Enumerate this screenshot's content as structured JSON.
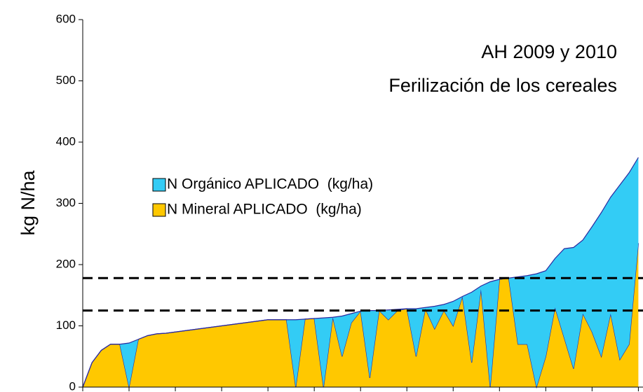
{
  "chart_data": {
    "type": "stacked_area",
    "title": [
      "AH 2009 y 2010",
      "Ferilización de los cereales"
    ],
    "ylabel": "kg N/ha",
    "x": [
      0,
      2,
      4,
      6,
      8,
      10,
      12,
      14,
      16,
      18,
      20,
      22,
      24,
      26,
      28,
      30,
      32,
      34,
      36,
      38,
      40,
      42,
      44,
      46,
      48,
      50,
      52,
      54,
      56,
      58,
      60,
      62,
      64,
      66,
      68,
      70,
      72,
      74,
      76,
      78,
      80,
      82,
      84,
      86,
      88,
      90,
      92,
      94,
      96,
      98,
      100,
      102,
      104,
      106,
      108,
      110,
      112,
      114,
      116,
      118,
      120
    ],
    "xlim": [
      0,
      121
    ],
    "xticks": [
      0,
      10,
      20,
      30,
      40,
      50,
      60,
      70,
      80,
      90,
      100,
      110,
      120
    ],
    "ylim": [
      0,
      600
    ],
    "yticks": [
      0,
      100,
      200,
      300,
      400,
      500,
      600
    ],
    "reference_lines": [
      178,
      125
    ],
    "outline_color": "#2a2aa0",
    "series": [
      {
        "name": "N Orgánico APLICADO  (kg/ha)",
        "color": "#33ccf5",
        "values": [
          0,
          0,
          0,
          0,
          0,
          72,
          0,
          0,
          0,
          0,
          0,
          0,
          0,
          0,
          0,
          0,
          0,
          0,
          0,
          0,
          0,
          0,
          0,
          110,
          0,
          0,
          113,
          0,
          66,
          15,
          0,
          110,
          0,
          16,
          2,
          0,
          78,
          2,
          37,
          10,
          40,
          0,
          115,
          5,
          172,
          0,
          0,
          110,
          112,
          185,
          140,
          80,
          146,
          198,
          120,
          172,
          235,
          190,
          285,
          280,
          140
        ]
      },
      {
        "name": "N Mineral APLICADO  (kg/ha)",
        "color": "#ffc800",
        "values": [
          0,
          40,
          60,
          70,
          70,
          0,
          78,
          84,
          87,
          88,
          90,
          92,
          94,
          96,
          98,
          100,
          102,
          104,
          106,
          108,
          110,
          110,
          110,
          0,
          111,
          112,
          0,
          114,
          50,
          105,
          124,
          15,
          125,
          110,
          125,
          128,
          50,
          128,
          95,
          125,
          100,
          148,
          40,
          160,
          0,
          176,
          178,
          70,
          70,
          0,
          50,
          130,
          80,
          30,
          120,
          90,
          50,
          120,
          45,
          70,
          235
        ]
      }
    ],
    "legend_order": [
      0,
      1
    ]
  }
}
